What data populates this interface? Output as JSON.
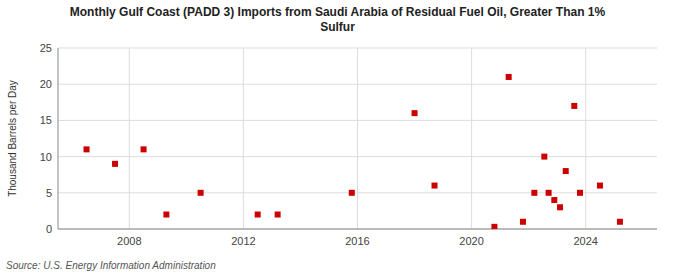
{
  "chart_data": {
    "type": "scatter",
    "title": "Monthly Gulf Coast (PADD 3) Imports from Saudi Arabia of Residual Fuel Oil, Greater Than 1%\nSulfur",
    "y_label": "Thousand Barrels per Day",
    "source": "Source: U.S. Energy Information Administration",
    "x": [
      2006.5,
      2007.5,
      2008.5,
      2009.3,
      2010.5,
      2012.5,
      2013.2,
      2015.8,
      2018.0,
      2018.7,
      2020.8,
      2021.3,
      2021.8,
      2022.2,
      2022.55,
      2022.7,
      2022.9,
      2023.1,
      2023.3,
      2023.6,
      2023.8,
      2024.5,
      2025.2
    ],
    "values": [
      11,
      9,
      11,
      2,
      5,
      2,
      2,
      5,
      16,
      6,
      0.3,
      21,
      1,
      5,
      10,
      5,
      4,
      3,
      8,
      17,
      5,
      6,
      1
    ],
    "color": "#cc0000",
    "marker": "square",
    "xlim": [
      2005.5,
      2026.5
    ],
    "ylim": [
      0,
      25
    ],
    "xticks": [
      2008,
      2012,
      2016,
      2020,
      2024
    ],
    "yticks": [
      0,
      5,
      10,
      15,
      20,
      25
    ],
    "grid": true
  }
}
